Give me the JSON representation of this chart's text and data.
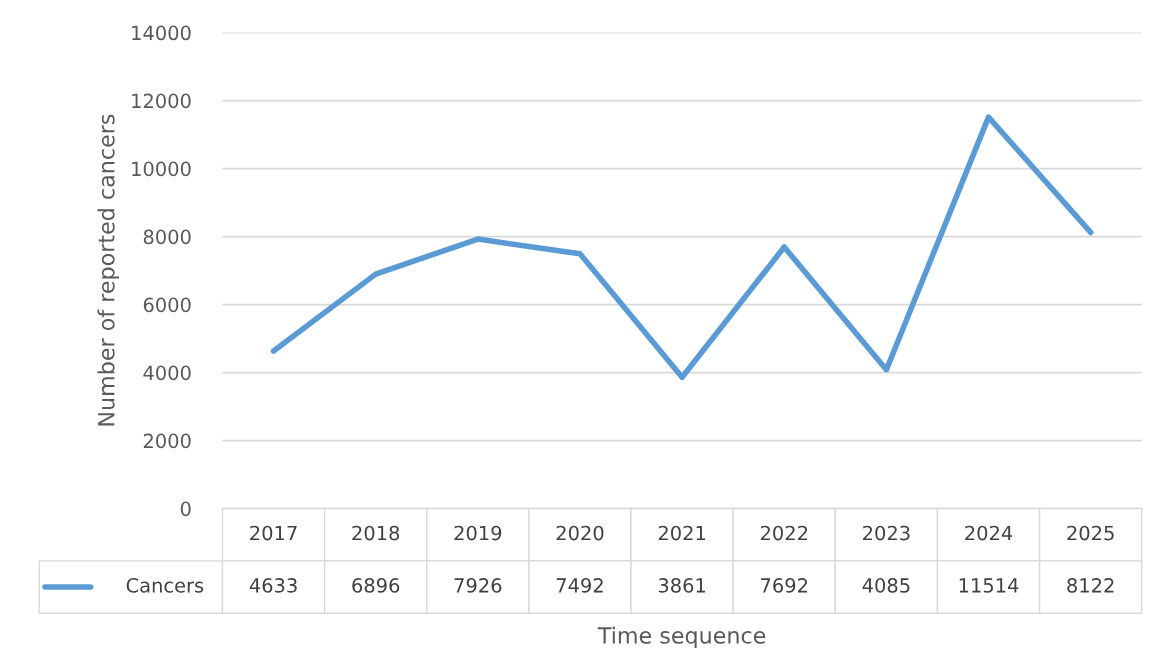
{
  "chart_data": {
    "type": "line",
    "xlabel": "Time sequence",
    "ylabel": "Number of reported cancers",
    "categories": [
      "2017",
      "2018",
      "2019",
      "2020",
      "2021",
      "2022",
      "2023",
      "2024",
      "2025"
    ],
    "series": [
      {
        "name": "Cancers",
        "color": "#5b9bd5",
        "values": [
          4633,
          6896,
          7926,
          7492,
          3861,
          7692,
          4085,
          11514,
          8122
        ]
      }
    ],
    "ylim": [
      0,
      14000
    ],
    "yticks": [
      0,
      2000,
      4000,
      6000,
      8000,
      10000,
      12000,
      14000
    ],
    "grid": "y",
    "data_labels": true,
    "marker": "none",
    "line_style": "solid"
  }
}
